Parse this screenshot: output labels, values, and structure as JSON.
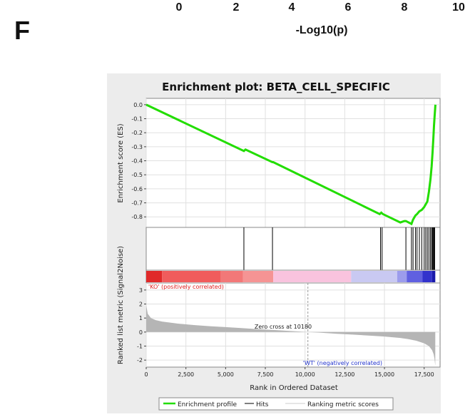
{
  "panel_label": "F",
  "top_axis": {
    "ticks": [
      "0",
      "2",
      "4",
      "6",
      "8",
      "10"
    ],
    "label": "-Log10(p)"
  },
  "chart_data": {
    "type": "line",
    "title": "Enrichment plot: BETA_CELL_SPECIFIC",
    "es_panel": {
      "ylabel": "Enrichment score (ES)",
      "ylim": [
        -0.85,
        0.0
      ],
      "yticks": [
        "0.0",
        "-0.1",
        "-0.2",
        "-0.3",
        "-0.4",
        "-0.5",
        "-0.6",
        "-0.7",
        "-0.8"
      ],
      "ytick_values": [
        0.0,
        -0.1,
        -0.2,
        -0.3,
        -0.4,
        -0.5,
        -0.6,
        -0.7,
        -0.8
      ],
      "line_color": "#22dd00",
      "x": [
        0,
        6150,
        6250,
        7950,
        8000,
        14700,
        14800,
        14900,
        16000,
        16250,
        16350,
        16700,
        16800,
        16950,
        17050,
        17200,
        17350,
        17500,
        17600,
        17700,
        17800,
        17900,
        17970,
        18030,
        18080,
        18120,
        18160,
        18190,
        18210
      ],
      "es": [
        0.0,
        -0.33,
        -0.32,
        -0.41,
        -0.41,
        -0.78,
        -0.77,
        -0.78,
        -0.84,
        -0.83,
        -0.83,
        -0.85,
        -0.82,
        -0.79,
        -0.78,
        -0.76,
        -0.75,
        -0.73,
        -0.71,
        -0.69,
        -0.62,
        -0.53,
        -0.44,
        -0.34,
        -0.24,
        -0.15,
        -0.08,
        -0.03,
        0.0
      ]
    },
    "hits_x": [
      6150,
      7950,
      14750,
      14850,
      16350,
      16700,
      16800,
      16950,
      17050,
      17200,
      17350,
      17500,
      17600,
      17700,
      17800,
      17900,
      17970,
      18030,
      18080,
      18120,
      18160
    ],
    "rank_panel": {
      "ylabel": "Ranked list metric (Signal2Noise)",
      "ylim": [
        -2.5,
        3.5
      ],
      "yticks": [
        "3",
        "2",
        "1",
        "0",
        "-1",
        "-2"
      ],
      "ytick_values": [
        3,
        2,
        1,
        0,
        -1,
        -2
      ],
      "profile_x": [
        0,
        100,
        300,
        600,
        1000,
        2000,
        3000,
        4000,
        5000,
        6000,
        7000,
        8000,
        9000,
        10180,
        11000,
        12000,
        13000,
        14000,
        15000,
        16000,
        16500,
        17000,
        17500,
        17800,
        18000,
        18100,
        18150,
        18200
      ],
      "profile_y": [
        1.9,
        1.3,
        1.0,
        0.85,
        0.75,
        0.6,
        0.5,
        0.42,
        0.35,
        0.28,
        0.21,
        0.15,
        0.08,
        0.0,
        -0.05,
        -0.12,
        -0.18,
        -0.25,
        -0.32,
        -0.42,
        -0.5,
        -0.62,
        -0.8,
        -1.0,
        -1.3,
        -1.6,
        -1.9,
        -2.4
      ],
      "zero_cross_label": "Zero cross at 10180",
      "pos_label": "'KO' (positively correlated)",
      "neg_label": "'WT' (negatively correlated)"
    },
    "x_axis": {
      "label": "Rank in Ordered Dataset",
      "xlim": [
        0,
        18500
      ],
      "ticks": [
        "0",
        "2,500",
        "5,000",
        "7,500",
        "10,000",
        "12,500",
        "15,000",
        "17,500"
      ],
      "tick_values": [
        0,
        2500,
        5000,
        7500,
        10000,
        12500,
        15000,
        17500
      ]
    },
    "heat_bar": [
      {
        "x0": 0,
        "x1": 1000,
        "color": "#e02a2a"
      },
      {
        "x0": 1000,
        "x1": 4700,
        "color": "#f05c5c"
      },
      {
        "x0": 4700,
        "x1": 6100,
        "color": "#f27878"
      },
      {
        "x0": 6100,
        "x1": 8000,
        "color": "#f59494"
      },
      {
        "x0": 8000,
        "x1": 12900,
        "color": "#f9c3de"
      },
      {
        "x0": 12900,
        "x1": 15800,
        "color": "#c9c9f2"
      },
      {
        "x0": 15800,
        "x1": 16400,
        "color": "#9c9cec"
      },
      {
        "x0": 16400,
        "x1": 17400,
        "color": "#6060e0"
      },
      {
        "x0": 17400,
        "x1": 18000,
        "color": "#3333cc"
      },
      {
        "x0": 18000,
        "x1": 18200,
        "color": "#1a1aaa"
      }
    ],
    "legend": [
      {
        "name": "Enrichment profile",
        "color": "#22dd00"
      },
      {
        "name": "Hits",
        "color": "#000000"
      },
      {
        "name": "Ranking metric scores",
        "color": "#aaaaaa"
      }
    ],
    "legend_placement": "bottom"
  }
}
